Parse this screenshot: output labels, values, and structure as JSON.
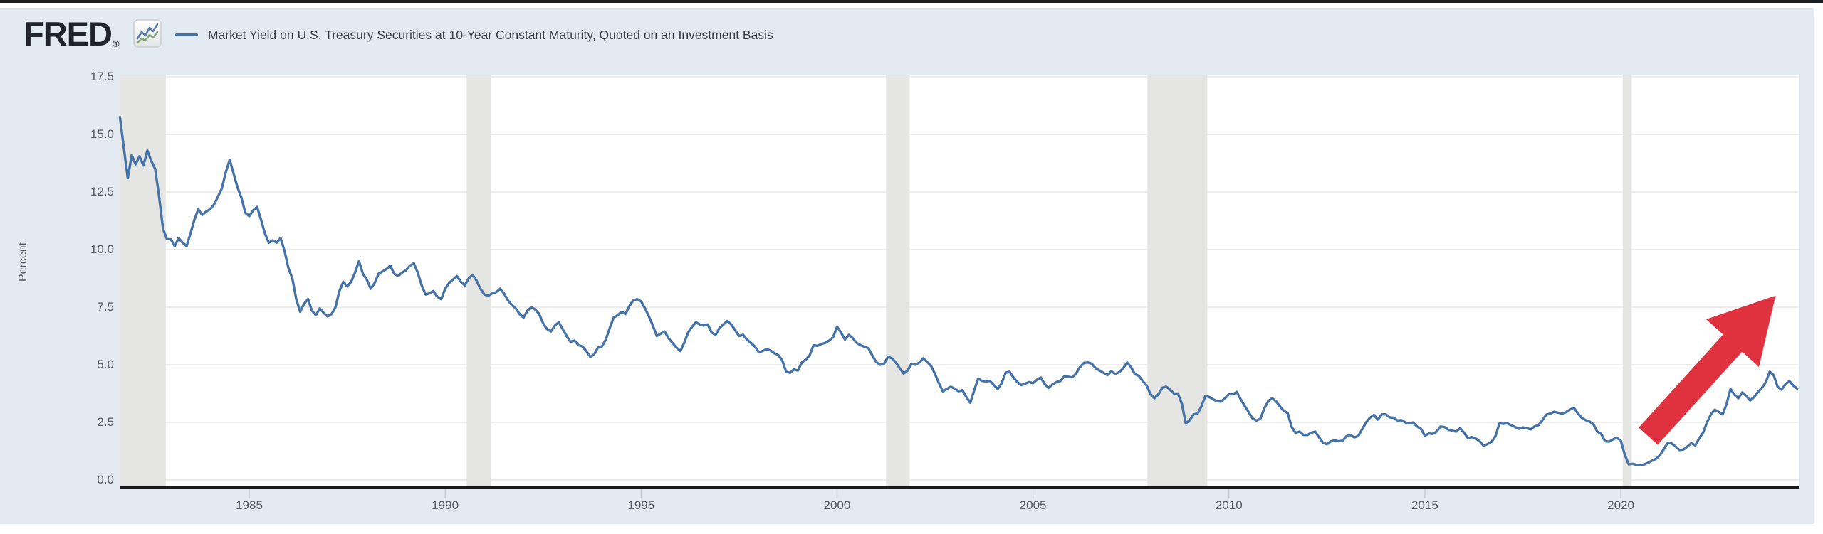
{
  "header": {
    "logo_text": "FRED",
    "registered_mark": "®",
    "logo_color": "#21252b",
    "icons": {
      "fred_logo_chart_icon": "line-chart"
    },
    "legend": {
      "series_title": "Market Yield on U.S. Treasury Securities at 10-Year Constant Maturity, Quoted on an Investment Basis",
      "swatch_color": "#4572a7"
    }
  },
  "colors": {
    "canvas_background": "#e3eaf1",
    "plot_background": "#ffffff",
    "gridline": "#ececec",
    "recession_band": "#e5e5e3",
    "axis_line": "#1a1a1a",
    "tick_mark": "#c9ccd0",
    "series_line": "#4572a7",
    "arrow_red": "#e0313f",
    "label_text": "#55585c"
  },
  "chart_data": {
    "type": "line",
    "title": "Market Yield on U.S. Treasury Securities at 10-Year Constant Maturity, Quoted on an Investment Basis",
    "xlabel": "",
    "ylabel": "Percent",
    "grid": true,
    "legend_position": "top-left",
    "ylim": [
      0,
      17.5
    ],
    "y_ticks": [
      "0.0",
      "2.5",
      "5.0",
      "7.5",
      "10.0",
      "12.5",
      "15.0",
      "17.5"
    ],
    "x_ticks": [
      "1985",
      "1990",
      "1995",
      "2000",
      "2005",
      "2010",
      "2015",
      "2020"
    ],
    "x_range_years": [
      1981.69,
      2024.56
    ],
    "recession_bands_years": [
      [
        1981.69,
        1982.87
      ],
      [
        1990.55,
        1991.17
      ],
      [
        2001.25,
        2001.85
      ],
      [
        2007.92,
        2009.45
      ],
      [
        2020.05,
        2020.28
      ]
    ],
    "series": [
      {
        "name": "Market Yield on U.S. Treasury Securities at 10-Year Constant Maturity, Quoted on an Investment Basis",
        "units": "Percent",
        "start_year": 1981.7,
        "step_years": 0.1,
        "values": [
          15.75,
          14.4,
          13.1,
          14.1,
          13.7,
          14.05,
          13.65,
          14.3,
          13.85,
          13.5,
          12.3,
          10.9,
          10.45,
          10.45,
          10.15,
          10.5,
          10.3,
          10.15,
          10.7,
          11.3,
          11.75,
          11.5,
          11.65,
          11.75,
          11.95,
          12.3,
          12.65,
          13.35,
          13.9,
          13.3,
          12.7,
          12.25,
          11.6,
          11.45,
          11.7,
          11.85,
          11.3,
          10.7,
          10.3,
          10.4,
          10.3,
          10.5,
          9.95,
          9.2,
          8.75,
          7.85,
          7.3,
          7.65,
          7.85,
          7.35,
          7.15,
          7.45,
          7.25,
          7.1,
          7.2,
          7.5,
          8.2,
          8.6,
          8.4,
          8.6,
          9.0,
          9.5,
          8.95,
          8.7,
          8.3,
          8.55,
          8.95,
          9.05,
          9.15,
          9.3,
          8.95,
          8.85,
          9.0,
          9.1,
          9.3,
          9.4,
          9.0,
          8.45,
          8.05,
          8.1,
          8.2,
          7.95,
          7.85,
          8.3,
          8.55,
          8.7,
          8.85,
          8.6,
          8.45,
          8.75,
          8.9,
          8.65,
          8.3,
          8.05,
          8.0,
          8.1,
          8.15,
          8.3,
          8.1,
          7.8,
          7.6,
          7.45,
          7.2,
          7.05,
          7.35,
          7.5,
          7.4,
          7.2,
          6.8,
          6.55,
          6.45,
          6.7,
          6.85,
          6.55,
          6.25,
          6.0,
          6.05,
          5.85,
          5.8,
          5.6,
          5.35,
          5.45,
          5.75,
          5.8,
          6.1,
          6.6,
          7.05,
          7.15,
          7.3,
          7.2,
          7.55,
          7.8,
          7.85,
          7.75,
          7.45,
          7.1,
          6.7,
          6.25,
          6.35,
          6.45,
          6.15,
          5.95,
          5.75,
          5.6,
          5.95,
          6.4,
          6.65,
          6.85,
          6.75,
          6.7,
          6.75,
          6.4,
          6.3,
          6.6,
          6.75,
          6.9,
          6.75,
          6.5,
          6.25,
          6.3,
          6.1,
          5.95,
          5.8,
          5.55,
          5.6,
          5.68,
          5.62,
          5.5,
          5.42,
          5.2,
          4.7,
          4.65,
          4.8,
          4.75,
          5.1,
          5.22,
          5.4,
          5.85,
          5.82,
          5.9,
          5.95,
          6.05,
          6.2,
          6.65,
          6.4,
          6.1,
          6.3,
          6.15,
          5.95,
          5.85,
          5.78,
          5.72,
          5.4,
          5.12,
          5.0,
          5.05,
          5.35,
          5.28,
          5.1,
          4.85,
          4.62,
          4.75,
          5.05,
          5.0,
          5.1,
          5.28,
          5.12,
          4.95,
          4.6,
          4.2,
          3.85,
          3.95,
          4.05,
          3.97,
          3.85,
          3.9,
          3.6,
          3.35,
          3.9,
          4.4,
          4.3,
          4.28,
          4.3,
          4.12,
          3.95,
          4.2,
          4.65,
          4.7,
          4.45,
          4.25,
          4.12,
          4.18,
          4.25,
          4.2,
          4.35,
          4.45,
          4.15,
          4.0,
          4.15,
          4.25,
          4.3,
          4.5,
          4.48,
          4.45,
          4.62,
          4.9,
          5.08,
          5.1,
          5.05,
          4.85,
          4.75,
          4.65,
          4.55,
          4.72,
          4.6,
          4.68,
          4.85,
          5.1,
          4.9,
          4.6,
          4.52,
          4.3,
          4.1,
          3.72,
          3.55,
          3.72,
          4.0,
          4.05,
          3.92,
          3.75,
          3.75,
          3.3,
          2.45,
          2.6,
          2.85,
          2.88,
          3.2,
          3.65,
          3.6,
          3.5,
          3.42,
          3.4,
          3.55,
          3.72,
          3.72,
          3.82,
          3.5,
          3.22,
          2.95,
          2.68,
          2.58,
          2.65,
          3.1,
          3.42,
          3.55,
          3.42,
          3.2,
          3.0,
          2.9,
          2.3,
          2.05,
          2.1,
          1.96,
          1.95,
          2.05,
          2.1,
          1.85,
          1.62,
          1.55,
          1.68,
          1.72,
          1.68,
          1.7,
          1.9,
          1.95,
          1.85,
          1.9,
          2.2,
          2.5,
          2.7,
          2.82,
          2.62,
          2.85,
          2.85,
          2.72,
          2.7,
          2.58,
          2.6,
          2.5,
          2.45,
          2.5,
          2.32,
          2.22,
          1.92,
          2.02,
          2.0,
          2.1,
          2.32,
          2.3,
          2.18,
          2.14,
          2.1,
          2.25,
          2.05,
          1.82,
          1.86,
          1.8,
          1.68,
          1.48,
          1.56,
          1.65,
          1.9,
          2.45,
          2.44,
          2.46,
          2.38,
          2.3,
          2.22,
          2.28,
          2.24,
          2.2,
          2.32,
          2.38,
          2.6,
          2.84,
          2.88,
          2.96,
          2.92,
          2.88,
          2.94,
          3.05,
          3.14,
          2.9,
          2.7,
          2.6,
          2.54,
          2.42,
          2.1,
          2.0,
          1.68,
          1.66,
          1.76,
          1.84,
          1.7,
          1.1,
          0.68,
          0.7,
          0.66,
          0.64,
          0.68,
          0.75,
          0.84,
          0.92,
          1.08,
          1.35,
          1.62,
          1.58,
          1.45,
          1.3,
          1.32,
          1.45,
          1.6,
          1.5,
          1.8,
          2.05,
          2.5,
          2.85,
          3.05,
          2.95,
          2.85,
          3.3,
          3.95,
          3.7,
          3.55,
          3.8,
          3.65,
          3.45,
          3.6,
          3.82,
          4.0,
          4.25,
          4.7,
          4.55,
          4.05,
          3.92,
          4.15,
          4.3,
          4.1,
          3.97
        ]
      }
    ],
    "annotation_arrow": {
      "description": "red arrow pointing up-right at rising yields",
      "from_year": 2020.7,
      "from_value": 1.9,
      "to_year": 2023.95,
      "to_value": 8.0,
      "color": "#e0313f"
    }
  }
}
